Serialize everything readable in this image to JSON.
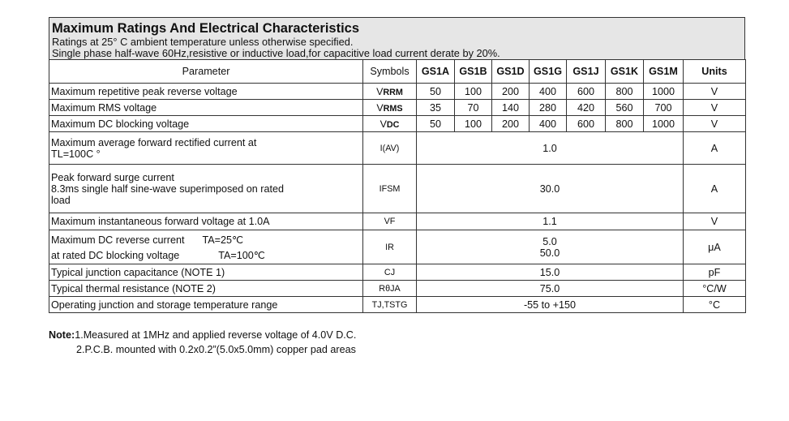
{
  "header": {
    "title": "Maximum Ratings And Electrical Characteristics",
    "line1": "Ratings at 25° C ambient temperature unless otherwise specified.",
    "line2": "Single phase half-wave 60Hz,resistive or inductive load,for capacitive load current derate by 20%."
  },
  "columns": {
    "parameter": "Parameter",
    "symbols": "Symbols",
    "types": [
      "GS1A",
      "GS1B",
      "GS1D",
      "GS1G",
      "GS1J",
      "GS1K",
      "GS1M"
    ],
    "units": "Units"
  },
  "rows": {
    "vrrm": {
      "param": "Maximum repetitive peak reverse voltage",
      "sym_main": "V",
      "sym_sub": "RRM",
      "values": [
        "50",
        "100",
        "200",
        "400",
        "600",
        "800",
        "1000"
      ],
      "unit": "V"
    },
    "vrms": {
      "param": "Maximum RMS voltage",
      "sym_main": "V",
      "sym_sub": "RMS",
      "values": [
        "35",
        "70",
        "140",
        "280",
        "420",
        "560",
        "700"
      ],
      "unit": "V"
    },
    "vdc": {
      "param": "Maximum DC blocking voltage",
      "sym_main": "V",
      "sym_sub": "DC",
      "values": [
        "50",
        "100",
        "200",
        "400",
        "600",
        "800",
        "1000"
      ],
      "unit": "V"
    },
    "iav": {
      "param_line1": "Maximum average forward rectified current at",
      "param_line2": "TL=100C °",
      "sym": "I(AV)",
      "value": "1.0",
      "unit": "A"
    },
    "ifsm": {
      "param_line1": "Peak forward surge current",
      "param_line2": "8.3ms single half sine-wave superimposed on rated",
      "param_line3": "load",
      "sym": "IFSM",
      "value": "30.0",
      "unit": "A"
    },
    "vf": {
      "param": "Maximum instantaneous forward voltage at 1.0A",
      "sym": "VF",
      "value": "1.1",
      "unit": "V"
    },
    "ir": {
      "param_line1": "Maximum DC reverse current",
      "cond1": "TA=25℃",
      "param_line2": "at rated DC blocking voltage",
      "cond2": "TA=100℃",
      "sym": "IR",
      "value1": "5.0",
      "value2": "50.0",
      "unit": "μA"
    },
    "cj": {
      "param": "Typical junction capacitance (NOTE 1)",
      "sym": "CJ",
      "value": "15.0",
      "unit": "pF"
    },
    "rth": {
      "param": "Typical thermal resistance (NOTE 2)",
      "sym": "RθJA",
      "value": "75.0",
      "unit": "°C/W"
    },
    "tj": {
      "param": "Operating junction and storage temperature range",
      "sym": "TJ,TSTG",
      "value": "-55 to +150",
      "unit": "°C"
    }
  },
  "notes": {
    "label": "Note:",
    "note1": "1.Measured at 1MHz and applied reverse voltage of 4.0V D.C.",
    "note2": "2.P.C.B. mounted with 0.2x0.2”(5.0x5.0mm) copper pad areas"
  }
}
